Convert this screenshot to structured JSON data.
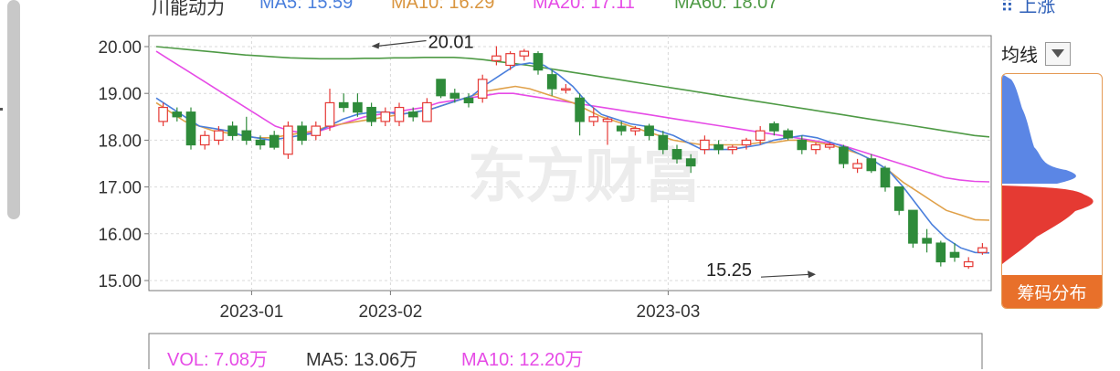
{
  "stock": {
    "name": "川能动力",
    "ma5": "MA5: 15.59",
    "ma10": "MA10: 16.29",
    "ma20": "MA20: 17.11",
    "ma60": "MA60: 18.07"
  },
  "top_right_link": "上涨",
  "ma_selector": {
    "label": "均线"
  },
  "chip_panel": {
    "label": "筹码分布"
  },
  "watermark": "东方财富",
  "volume": {
    "vol": "VOL: 7.08万",
    "ma5": "MA5: 13.06万",
    "ma10": "MA10: 12.20万"
  },
  "vol_axis_label": "",
  "colors": {
    "up": "#e53935",
    "down": "#2e8b3a",
    "ma5": "#4a7fdc",
    "ma10": "#e0a14a",
    "ma20": "#e64be6",
    "ma60": "#4e9a45",
    "grid": "#d9d9d9",
    "frame": "#777777"
  },
  "chart_data": {
    "type": "candlestick",
    "ylim": [
      14.9,
      20.2
    ],
    "y_ticks": [
      "20.00",
      "19.00",
      "18.00",
      "17.00",
      "16.00",
      "15.00"
    ],
    "x_tick_labels": [
      {
        "label": "2023-01",
        "index": 7
      },
      {
        "label": "2023-02",
        "index": 17
      },
      {
        "label": "2023-03",
        "index": 37
      }
    ],
    "annotations": [
      {
        "text": "20.01",
        "index": 15,
        "value": 20.01
      },
      {
        "text": "15.25",
        "index": 47,
        "value": 15.25
      }
    ],
    "candles": [
      {
        "o": 18.4,
        "c": 18.7,
        "h": 18.8,
        "l": 18.3
      },
      {
        "o": 18.6,
        "c": 18.5,
        "h": 18.7,
        "l": 18.4
      },
      {
        "o": 18.6,
        "c": 17.9,
        "h": 18.7,
        "l": 17.8
      },
      {
        "o": 17.9,
        "c": 18.1,
        "h": 18.2,
        "l": 17.8
      },
      {
        "o": 18.0,
        "c": 18.2,
        "h": 18.3,
        "l": 17.9
      },
      {
        "o": 18.3,
        "c": 18.1,
        "h": 18.4,
        "l": 18.0
      },
      {
        "o": 18.2,
        "c": 18.0,
        "h": 18.5,
        "l": 17.9
      },
      {
        "o": 18.0,
        "c": 17.9,
        "h": 18.1,
        "l": 17.8
      },
      {
        "o": 18.1,
        "c": 17.85,
        "h": 18.2,
        "l": 17.8
      },
      {
        "o": 17.7,
        "c": 18.3,
        "h": 18.4,
        "l": 17.6
      },
      {
        "o": 18.3,
        "c": 18.0,
        "h": 18.4,
        "l": 17.9
      },
      {
        "o": 18.1,
        "c": 18.3,
        "h": 18.4,
        "l": 18.0
      },
      {
        "o": 18.3,
        "c": 18.8,
        "h": 19.1,
        "l": 18.2
      },
      {
        "o": 18.8,
        "c": 18.7,
        "h": 19.0,
        "l": 18.6
      },
      {
        "o": 18.8,
        "c": 18.6,
        "h": 19.0,
        "l": 18.5
      },
      {
        "o": 18.7,
        "c": 18.4,
        "h": 18.8,
        "l": 18.3
      },
      {
        "o": 18.4,
        "c": 18.6,
        "h": 18.7,
        "l": 18.3
      },
      {
        "o": 18.4,
        "c": 18.7,
        "h": 18.8,
        "l": 18.3
      },
      {
        "o": 18.6,
        "c": 18.5,
        "h": 18.7,
        "l": 18.4
      },
      {
        "o": 18.4,
        "c": 18.8,
        "h": 18.9,
        "l": 18.4
      },
      {
        "o": 19.3,
        "c": 18.95,
        "h": 19.3,
        "l": 18.9
      },
      {
        "o": 19.0,
        "c": 18.9,
        "h": 19.1,
        "l": 18.8
      },
      {
        "o": 18.9,
        "c": 18.8,
        "h": 19.0,
        "l": 18.7
      },
      {
        "o": 18.9,
        "c": 19.3,
        "h": 19.4,
        "l": 18.8
      },
      {
        "o": 19.7,
        "c": 19.8,
        "h": 20.01,
        "l": 19.6
      },
      {
        "o": 19.6,
        "c": 19.85,
        "h": 19.9,
        "l": 19.5
      },
      {
        "o": 19.8,
        "c": 19.9,
        "h": 19.95,
        "l": 19.7
      },
      {
        "o": 19.85,
        "c": 19.5,
        "h": 19.9,
        "l": 19.4
      },
      {
        "o": 19.4,
        "c": 19.1,
        "h": 19.5,
        "l": 18.95
      },
      {
        "o": 19.1,
        "c": 19.1,
        "h": 19.2,
        "l": 19.0
      }
    ],
    "candles2": [
      {
        "o": 18.9,
        "c": 18.4,
        "h": 19.0,
        "l": 18.1
      },
      {
        "o": 18.4,
        "c": 18.5,
        "h": 18.7,
        "l": 18.3
      },
      {
        "o": 18.4,
        "c": 18.45,
        "h": 18.5,
        "l": 17.9
      },
      {
        "o": 18.3,
        "c": 18.2,
        "h": 18.4,
        "l": 18.1
      },
      {
        "o": 18.2,
        "c": 18.25,
        "h": 18.3,
        "l": 18.1
      },
      {
        "o": 18.3,
        "c": 18.1,
        "h": 18.35,
        "l": 18.0
      },
      {
        "o": 18.1,
        "c": 17.8,
        "h": 18.2,
        "l": 17.7
      },
      {
        "o": 17.8,
        "c": 17.6,
        "h": 17.9,
        "l": 17.5
      },
      {
        "o": 17.6,
        "c": 17.45,
        "h": 17.7,
        "l": 17.3
      },
      {
        "o": 17.8,
        "c": 18.0,
        "h": 18.1,
        "l": 17.7
      },
      {
        "o": 17.9,
        "c": 17.8,
        "h": 18.0,
        "l": 17.7
      },
      {
        "o": 17.8,
        "c": 17.85,
        "h": 17.9,
        "l": 17.7
      },
      {
        "o": 17.9,
        "c": 18.0,
        "h": 18.05,
        "l": 17.8
      },
      {
        "o": 18.0,
        "c": 18.2,
        "h": 18.3,
        "l": 17.9
      },
      {
        "o": 18.35,
        "c": 18.2,
        "h": 18.4,
        "l": 18.1
      },
      {
        "o": 18.2,
        "c": 18.05,
        "h": 18.25,
        "l": 18.0
      }
    ],
    "candles3": [
      {
        "o": 18.0,
        "c": 17.8,
        "h": 18.1,
        "l": 17.7
      },
      {
        "o": 17.8,
        "c": 17.9,
        "h": 17.95,
        "l": 17.7
      },
      {
        "o": 17.85,
        "c": 17.9,
        "h": 17.95,
        "l": 17.8
      },
      {
        "o": 17.85,
        "c": 17.5,
        "h": 17.9,
        "l": 17.4
      },
      {
        "o": 17.4,
        "c": 17.5,
        "h": 17.6,
        "l": 17.3
      },
      {
        "o": 17.6,
        "c": 17.35,
        "h": 17.7,
        "l": 17.3
      },
      {
        "o": 17.4,
        "c": 17.0,
        "h": 17.45,
        "l": 16.9
      },
      {
        "o": 17.0,
        "c": 16.5,
        "h": 17.0,
        "l": 16.4
      },
      {
        "o": 16.5,
        "c": 15.8,
        "h": 16.5,
        "l": 15.7
      },
      {
        "o": 15.9,
        "c": 15.8,
        "h": 16.1,
        "l": 15.6
      },
      {
        "o": 15.8,
        "c": 15.4,
        "h": 15.85,
        "l": 15.3
      },
      {
        "o": 15.6,
        "c": 15.5,
        "h": 15.8,
        "l": 15.4
      },
      {
        "o": 15.3,
        "c": 15.4,
        "h": 15.5,
        "l": 15.25
      },
      {
        "o": 15.6,
        "c": 15.7,
        "h": 15.8,
        "l": 15.55
      }
    ],
    "ma5": [
      18.9,
      18.7,
      18.5,
      18.3,
      18.25,
      18.2,
      18.1,
      18.05,
      18.0,
      18.05,
      18.1,
      18.15,
      18.3,
      18.45,
      18.55,
      18.6,
      18.6,
      18.55,
      18.6,
      18.65,
      18.75,
      18.85,
      18.95,
      19.2,
      19.4,
      19.6,
      19.65,
      19.6,
      19.4,
      19.15,
      18.8,
      18.55,
      18.45,
      18.35,
      18.3,
      18.2,
      18.1,
      17.95,
      17.8,
      17.8,
      17.8,
      17.85,
      17.9,
      18.0,
      18.05,
      18.1,
      18.05,
      17.95,
      17.85,
      17.7,
      17.55,
      17.35,
      17.0,
      16.6,
      16.2,
      15.9,
      15.7,
      15.6,
      15.59
    ],
    "ma10": [
      18.8,
      18.6,
      18.4,
      18.3,
      18.2,
      18.15,
      18.1,
      18.05,
      18.05,
      18.1,
      18.15,
      18.2,
      18.3,
      18.35,
      18.4,
      18.45,
      18.5,
      18.55,
      18.6,
      18.65,
      18.75,
      18.85,
      18.95,
      19.05,
      19.1,
      19.15,
      19.1,
      19.0,
      18.9,
      18.8,
      18.65,
      18.5,
      18.4,
      18.3,
      18.2,
      18.1,
      18.0,
      17.95,
      17.9,
      17.9,
      17.9,
      17.9,
      17.95,
      17.95,
      18.0,
      18.0,
      17.95,
      17.9,
      17.8,
      17.7,
      17.55,
      17.35,
      17.1,
      16.9,
      16.7,
      16.5,
      16.4,
      16.3,
      16.29
    ],
    "ma20": [
      19.9,
      19.7,
      19.5,
      19.3,
      19.1,
      18.9,
      18.7,
      18.5,
      18.3,
      18.2,
      18.15,
      18.2,
      18.3,
      18.4,
      18.5,
      18.55,
      18.6,
      18.65,
      18.7,
      18.8,
      18.85,
      18.9,
      18.95,
      19.0,
      19.0,
      18.95,
      18.9,
      18.85,
      18.8,
      18.75,
      18.7,
      18.65,
      18.6,
      18.55,
      18.5,
      18.45,
      18.4,
      18.35,
      18.3,
      18.25,
      18.2,
      18.15,
      18.1,
      18.05,
      18.0,
      17.95,
      17.9,
      17.8,
      17.7,
      17.6,
      17.5,
      17.4,
      17.3,
      17.2,
      17.15,
      17.12,
      17.11
    ],
    "ma60": [
      20.0,
      19.97,
      19.94,
      19.91,
      19.88,
      19.85,
      19.82,
      19.8,
      19.78,
      19.76,
      19.75,
      19.74,
      19.74,
      19.74,
      19.75,
      19.75,
      19.76,
      19.76,
      19.77,
      19.77,
      19.77,
      19.75,
      19.72,
      19.68,
      19.64,
      19.6,
      19.55,
      19.5,
      19.45,
      19.4,
      19.35,
      19.3,
      19.25,
      19.2,
      19.15,
      19.1,
      19.05,
      19.0,
      18.95,
      18.9,
      18.85,
      18.8,
      18.75,
      18.7,
      18.65,
      18.6,
      18.55,
      18.5,
      18.45,
      18.4,
      18.35,
      18.3,
      18.25,
      18.2,
      18.15,
      18.1,
      18.07
    ]
  }
}
